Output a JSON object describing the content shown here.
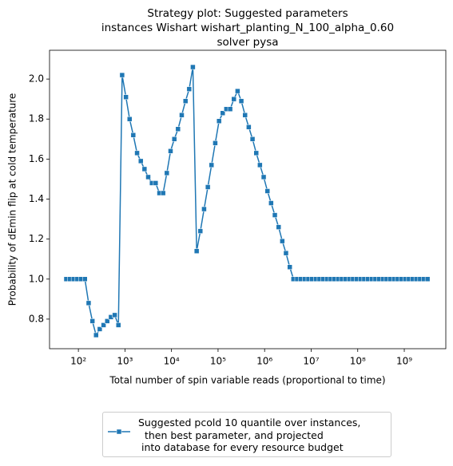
{
  "chart_data": {
    "type": "line",
    "title": [
      "Strategy plot: Suggested parameters",
      "instances Wishart wishart_planting_N_100_alpha_0.60",
      "solver pysa"
    ],
    "x_label": "Total number of spin variable reads (proportional to time)",
    "y_label": "Probability of dEmin flip at cold temperature",
    "x_scale": "log",
    "x": [
      55,
      66,
      79,
      95,
      115,
      138,
      166,
      200,
      240,
      288,
      347,
      417,
      501,
      603,
      724,
      871,
      1050,
      1260,
      1510,
      1820,
      2190,
      2630,
      3160,
      3800,
      4570,
      5500,
      6610,
      7940,
      9550,
      11500,
      13800,
      16600,
      20000,
      24000,
      28800,
      34700,
      41700,
      50100,
      60300,
      72400,
      87100,
      105000,
      126000,
      151000,
      182000,
      219000,
      263000,
      316000,
      380000,
      457000,
      550000,
      661000,
      794000,
      955000,
      1150000,
      1380000,
      1660000,
      2000000,
      2400000,
      2880000,
      3470000,
      4170000,
      5010000,
      6030000,
      7240000,
      8710000,
      10500000,
      12600000,
      15100000,
      18200000,
      21900000,
      26300000,
      31600000,
      38000000,
      45700000,
      55000000,
      66100000,
      79400000,
      95500000,
      115000000,
      138000000,
      166000000,
      200000000,
      240000000,
      288000000,
      347000000,
      417000000,
      501000000,
      603000000,
      724000000,
      871000000,
      1050000000,
      1260000000,
      1510000000,
      1820000000,
      2190000000,
      2630000000,
      3160000000
    ],
    "series": [
      {
        "name": "Suggested pcold 10 quantile over instances,\n  then best parameter, and projected\n into database for every resource budget",
        "color": "#1f77b4",
        "marker": "square",
        "values": [
          1.0,
          1.0,
          1.0,
          1.0,
          1.0,
          1.0,
          0.88,
          0.79,
          0.72,
          0.75,
          0.77,
          0.79,
          0.81,
          0.82,
          0.77,
          2.02,
          1.91,
          1.8,
          1.72,
          1.63,
          1.59,
          1.55,
          1.51,
          1.48,
          1.48,
          1.43,
          1.43,
          1.53,
          1.64,
          1.7,
          1.75,
          1.82,
          1.89,
          1.95,
          2.06,
          1.14,
          1.24,
          1.35,
          1.46,
          1.57,
          1.68,
          1.79,
          1.83,
          1.85,
          1.85,
          1.9,
          1.94,
          1.89,
          1.82,
          1.76,
          1.7,
          1.63,
          1.57,
          1.51,
          1.44,
          1.38,
          1.32,
          1.26,
          1.19,
          1.13,
          1.06,
          1.0,
          1.0,
          1.0,
          1.0,
          1.0,
          1.0,
          1.0,
          1.0,
          1.0,
          1.0,
          1.0,
          1.0,
          1.0,
          1.0,
          1.0,
          1.0,
          1.0,
          1.0,
          1.0,
          1.0,
          1.0,
          1.0,
          1.0,
          1.0,
          1.0,
          1.0,
          1.0,
          1.0,
          1.0,
          1.0,
          1.0,
          1.0,
          1.0,
          1.0,
          1.0,
          1.0,
          1.0
        ]
      }
    ],
    "xlim": [
      24,
      7800000000
    ],
    "ylim": [
      0.652,
      2.144
    ],
    "xticks": [
      {
        "value": 100,
        "label": "10²"
      },
      {
        "value": 1000,
        "label": "10³"
      },
      {
        "value": 10000,
        "label": "10⁴"
      },
      {
        "value": 100000,
        "label": "10⁵"
      },
      {
        "value": 1000000,
        "label": "10⁶"
      },
      {
        "value": 10000000,
        "label": "10⁷"
      },
      {
        "value": 100000000,
        "label": "10⁸"
      },
      {
        "value": 1000000000,
        "label": "10⁹"
      }
    ],
    "yticks": [
      {
        "value": 0.8,
        "label": "0.8"
      },
      {
        "value": 1.0,
        "label": "1.0"
      },
      {
        "value": 1.2,
        "label": "1.2"
      },
      {
        "value": 1.4,
        "label": "1.4"
      },
      {
        "value": 1.6,
        "label": "1.6"
      },
      {
        "value": 1.8,
        "label": "1.8"
      },
      {
        "value": 2.0,
        "label": "2.0"
      }
    ],
    "grid": false,
    "legend_position": "below"
  }
}
